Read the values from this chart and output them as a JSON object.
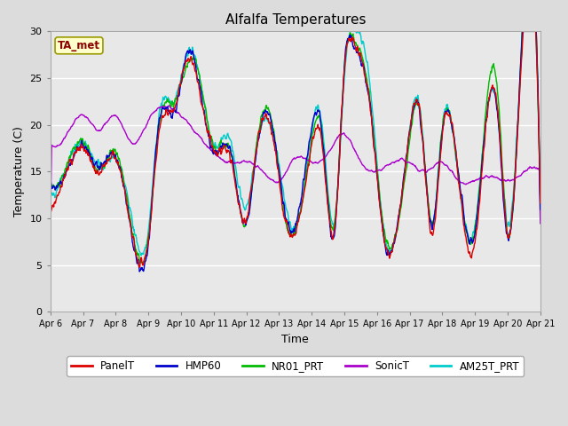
{
  "title": "Alfalfa Temperatures",
  "xlabel": "Time",
  "ylabel": "Temperature (C)",
  "ylim": [
    0,
    30
  ],
  "background_color": "#dcdcdc",
  "plot_bg_color": "#e8e8e8",
  "annotation_text": "TA_met",
  "annotation_color": "#8b0000",
  "annotation_bg": "#ffffcc",
  "grid_color": "#ffffff",
  "tick_labels": [
    "Apr 6",
    "Apr 7",
    "Apr 8",
    "Apr 9",
    "Apr 10",
    "Apr 11",
    "Apr 12",
    "Apr 13",
    "Apr 14",
    "Apr 15",
    "Apr 16",
    "Apr 17",
    "Apr 18",
    "Apr 19",
    "Apr 20",
    "Apr 21"
  ],
  "series": {
    "PanelT": {
      "color": "#dd0000",
      "lw": 1.0
    },
    "HMP60": {
      "color": "#0000cc",
      "lw": 1.0
    },
    "NR01_PRT": {
      "color": "#00bb00",
      "lw": 1.0
    },
    "SonicT": {
      "color": "#aa00cc",
      "lw": 1.0
    },
    "AM25T_PRT": {
      "color": "#00cccc",
      "lw": 1.0
    }
  }
}
